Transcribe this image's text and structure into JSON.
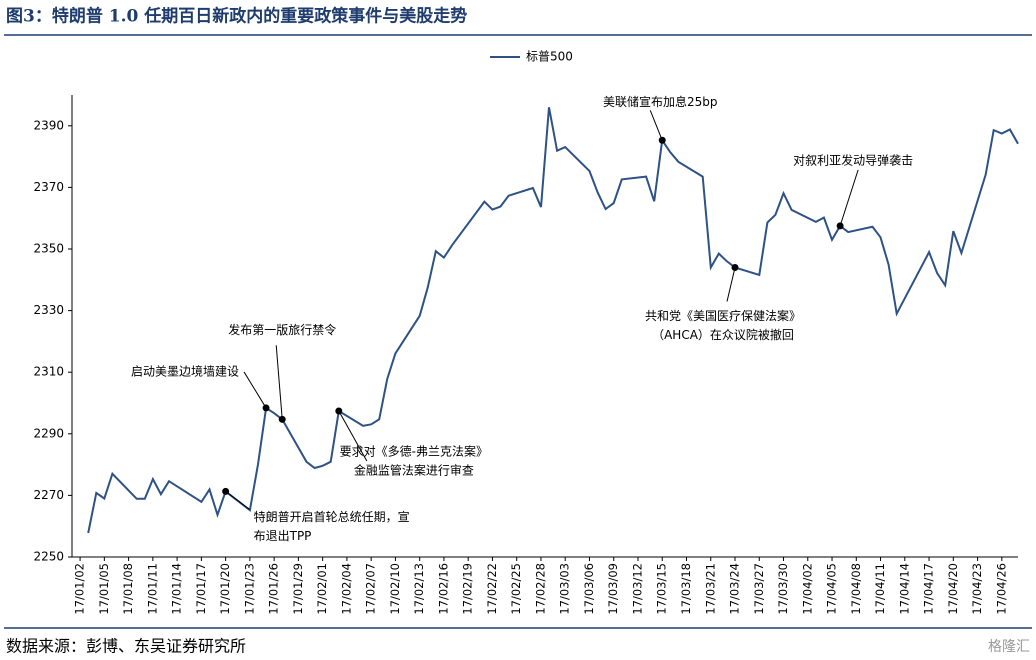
{
  "chart_data": {
    "type": "line",
    "title": "图3：特朗普 1.0 任期百日新政内的重要政策事件与美股走势",
    "source": "数据来源：彭博、东吴证券研究所",
    "watermark": "格隆汇",
    "legend": "top",
    "grid": false,
    "x": [
      "17/01/03",
      "17/01/04",
      "17/01/05",
      "17/01/06",
      "17/01/09",
      "17/01/10",
      "17/01/11",
      "17/01/12",
      "17/01/13",
      "17/01/17",
      "17/01/18",
      "17/01/19",
      "17/01/20",
      "17/01/23",
      "17/01/24",
      "17/01/25",
      "17/01/26",
      "17/01/27",
      "17/01/30",
      "17/01/31",
      "17/02/01",
      "17/02/02",
      "17/02/03",
      "17/02/06",
      "17/02/07",
      "17/02/08",
      "17/02/09",
      "17/02/10",
      "17/02/13",
      "17/02/14",
      "17/02/15",
      "17/02/16",
      "17/02/17",
      "17/02/21",
      "17/02/22",
      "17/02/23",
      "17/02/24",
      "17/02/27",
      "17/02/28",
      "17/03/01",
      "17/03/02",
      "17/03/03",
      "17/03/06",
      "17/03/07",
      "17/03/08",
      "17/03/09",
      "17/03/10",
      "17/03/13",
      "17/03/14",
      "17/03/15",
      "17/03/16",
      "17/03/17",
      "17/03/20",
      "17/03/21",
      "17/03/22",
      "17/03/23",
      "17/03/24",
      "17/03/27",
      "17/03/28",
      "17/03/29",
      "17/03/30",
      "17/03/31",
      "17/04/03",
      "17/04/04",
      "17/04/05",
      "17/04/06",
      "17/04/07",
      "17/04/10",
      "17/04/11",
      "17/04/12",
      "17/04/13",
      "17/04/17",
      "17/04/18",
      "17/04/19",
      "17/04/20",
      "17/04/21",
      "17/04/24",
      "17/04/25",
      "17/04/26",
      "17/04/27",
      "17/04/28"
    ],
    "series": [
      {
        "name": "标普500",
        "color": "#2e5286",
        "values": [
          2257.8,
          2270.8,
          2269.0,
          2277.0,
          2268.9,
          2268.9,
          2275.3,
          2270.4,
          2274.6,
          2267.9,
          2271.9,
          2263.7,
          2271.3,
          2265.2,
          2280.1,
          2298.4,
          2296.7,
          2294.7,
          2280.9,
          2278.9,
          2279.6,
          2280.9,
          2297.4,
          2292.6,
          2293.1,
          2294.7,
          2307.9,
          2316.1,
          2328.3,
          2337.6,
          2349.3,
          2347.2,
          2351.2,
          2365.4,
          2362.8,
          2363.8,
          2367.3,
          2369.8,
          2363.6,
          2396.0,
          2381.9,
          2383.1,
          2375.3,
          2368.4,
          2363.0,
          2364.9,
          2372.6,
          2373.5,
          2365.5,
          2385.3,
          2381.4,
          2378.3,
          2373.5,
          2344.0,
          2348.5,
          2346.0,
          2344.0,
          2341.6,
          2358.6,
          2361.1,
          2368.1,
          2362.7,
          2358.8,
          2360.2,
          2353.0,
          2357.5,
          2355.5,
          2357.2,
          2353.8,
          2344.9,
          2329.0,
          2349.0,
          2342.2,
          2338.2,
          2355.8,
          2348.7,
          2374.2,
          2388.6,
          2387.5,
          2388.8,
          2384.2
        ]
      }
    ],
    "xlim": [
      "17/01/01",
      "17/04/28"
    ],
    "xticks": [
      "17/01/02",
      "17/01/05",
      "17/01/08",
      "17/01/11",
      "17/01/14",
      "17/01/17",
      "17/01/20",
      "17/01/23",
      "17/01/26",
      "17/01/29",
      "17/02/01",
      "17/02/04",
      "17/02/07",
      "17/02/10",
      "17/02/13",
      "17/02/16",
      "17/02/19",
      "17/02/22",
      "17/02/25",
      "17/02/28",
      "17/03/03",
      "17/03/06",
      "17/03/09",
      "17/03/12",
      "17/03/15",
      "17/03/18",
      "17/03/21",
      "17/03/24",
      "17/03/27",
      "17/03/30",
      "17/04/02",
      "17/04/05",
      "17/04/08",
      "17/04/11",
      "17/04/14",
      "17/04/17",
      "17/04/20",
      "17/04/23",
      "17/04/26"
    ],
    "ylim": [
      2250,
      2400
    ],
    "yticks": [
      2250,
      2270,
      2290,
      2310,
      2330,
      2350,
      2370,
      2390
    ],
    "annotations": [
      {
        "x": "17/01/20",
        "lines": [
          "特朗普开启首轮总统任期，宣",
          "布退出TPP"
        ]
      },
      {
        "x": "17/01/25",
        "lines": [
          "启动美墨边境墙建设"
        ]
      },
      {
        "x": "17/01/27",
        "lines": [
          "发布第一版旅行禁令"
        ]
      },
      {
        "x": "17/02/03",
        "lines": [
          "要求对《多德-弗兰克法案》",
          "金融监管法案进行审查"
        ]
      },
      {
        "x": "17/03/15",
        "lines": [
          "美联储宣布加息25bp"
        ]
      },
      {
        "x": "17/03/24",
        "lines": [
          "共和党《美国医疗保健法案》",
          "（AHCA）在众议院被撤回"
        ]
      },
      {
        "x": "17/04/06",
        "lines": [
          "对叙利亚发动导弹袭击"
        ]
      }
    ]
  }
}
